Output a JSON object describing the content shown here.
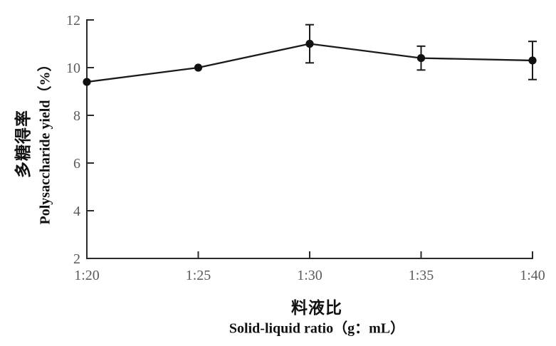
{
  "chart_data": {
    "type": "line",
    "title": "",
    "categories": [
      "1:20",
      "1:25",
      "1:30",
      "1:35",
      "1:40"
    ],
    "series": [
      {
        "name": "Polysaccharide yield",
        "values": [
          9.4,
          10.0,
          11.0,
          10.4,
          10.3
        ],
        "error_bars": [
          0,
          0,
          0.8,
          0.5,
          0.8
        ]
      }
    ],
    "xlabel_cn": "料液比",
    "xlabel_en": "Solid-liquid ratio（g：mL）",
    "ylabel_cn": "多糖得率",
    "ylabel_en": "Polysaccharide yield（%）",
    "ylim": [
      2,
      12
    ],
    "y_ticks": [
      2,
      4,
      6,
      8,
      10,
      12
    ],
    "grid": "off",
    "legend": "none",
    "marker": "filled-circle",
    "colors": {
      "line": "#1a1a1a",
      "marker": "#111111",
      "axis": "#2b2b2b",
      "tick_label": "#5a5a5a",
      "title_text": "#111111",
      "background": "#ffffff"
    }
  }
}
